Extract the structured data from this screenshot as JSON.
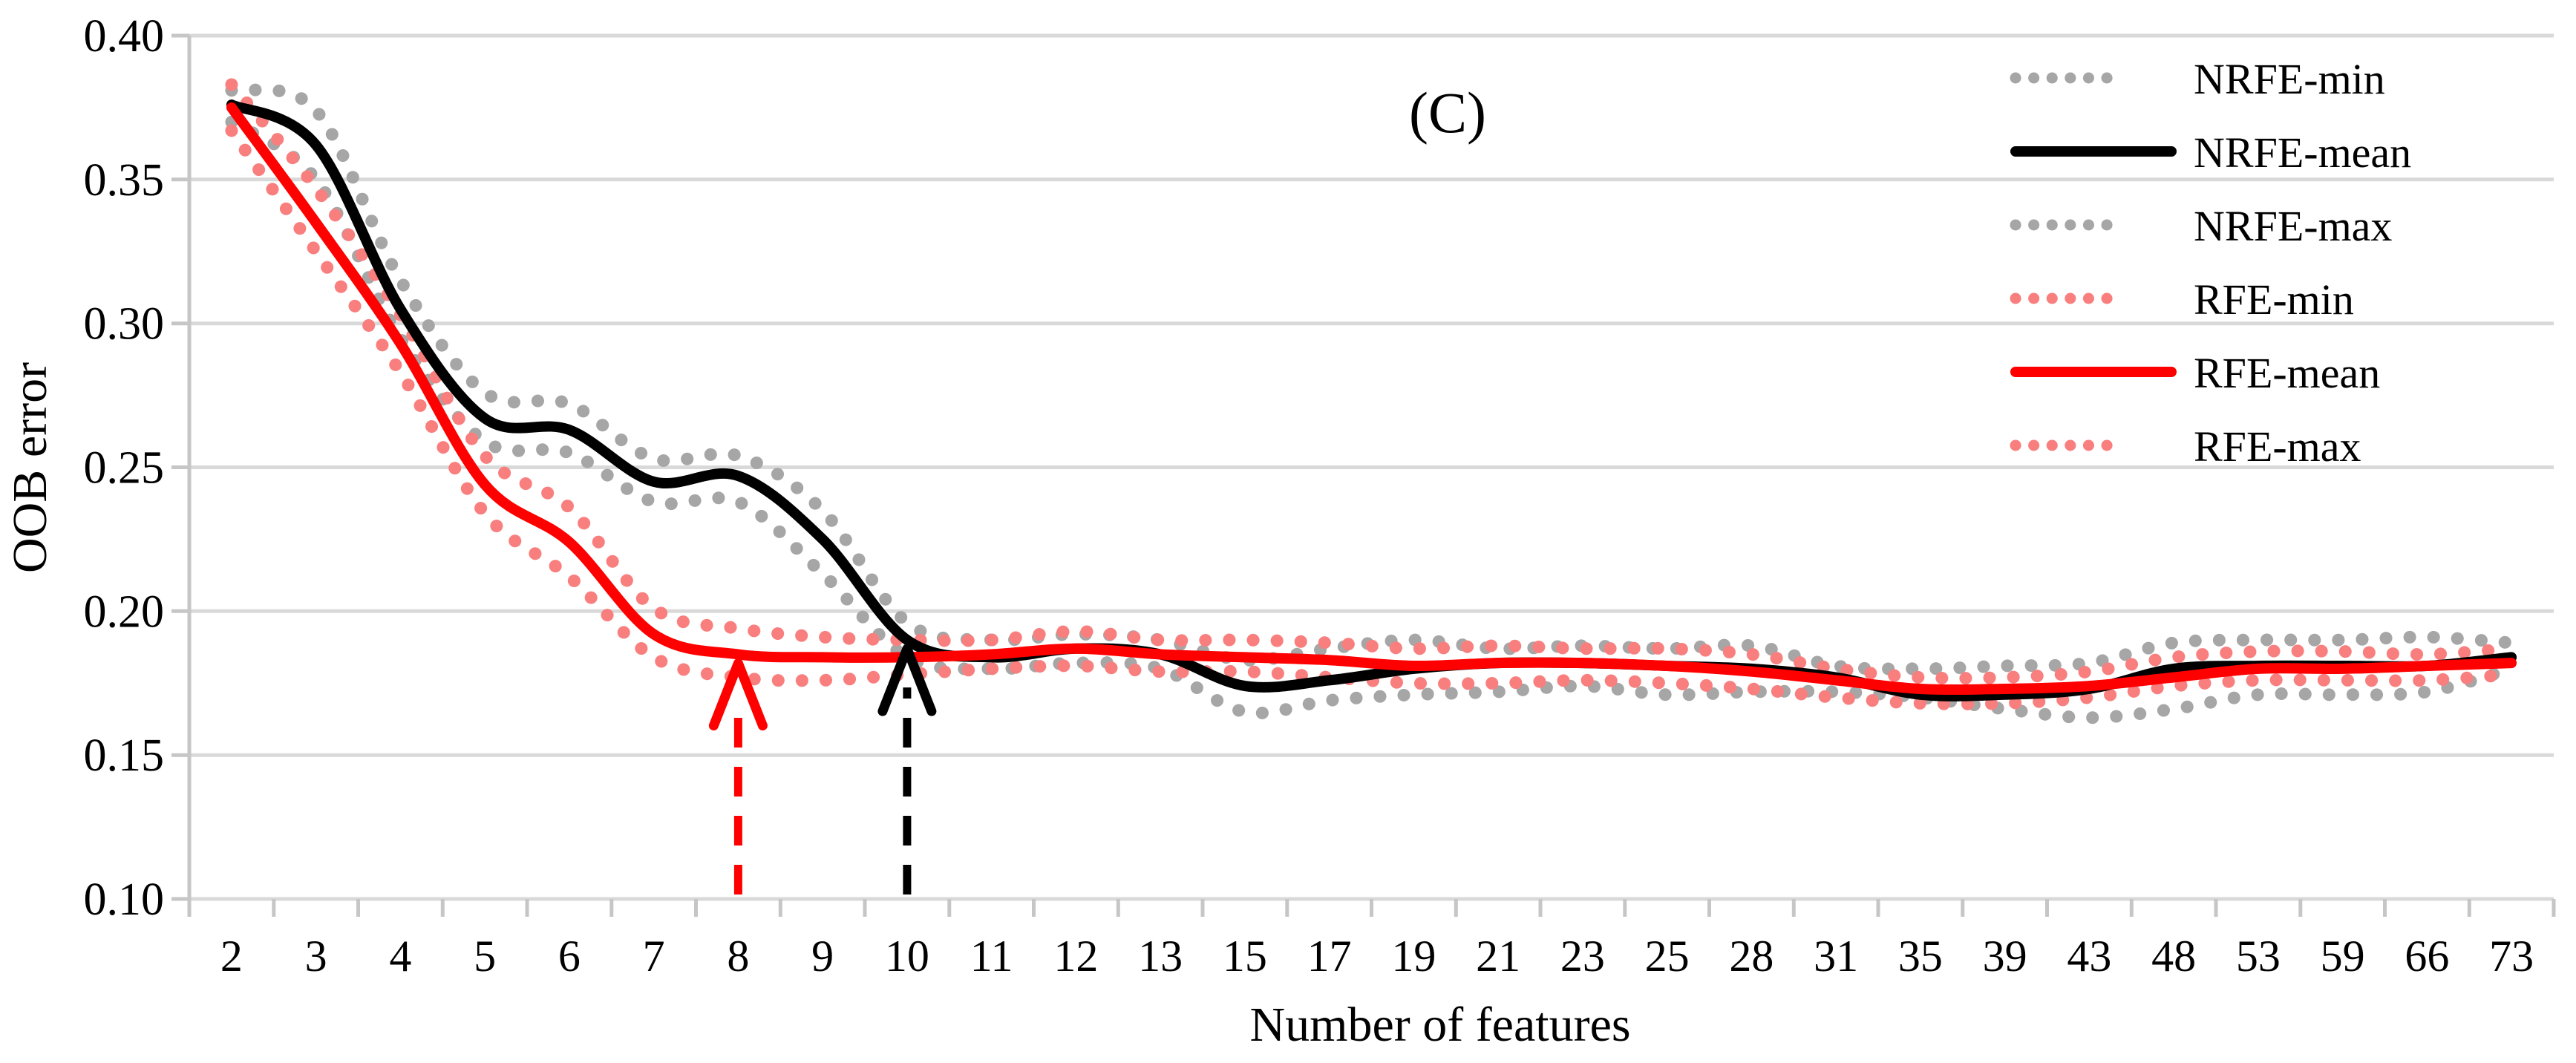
{
  "chart_data": {
    "type": "line",
    "title": "(C)",
    "xlabel": "Number of features",
    "ylabel": "OOB error",
    "ylim": [
      0.1,
      0.4
    ],
    "ytick_step": 0.05,
    "y_tick_labels": [
      "0.40",
      "0.35",
      "0.30",
      "0.25",
      "0.20",
      "0.15",
      "0.10"
    ],
    "grid": "horizontal",
    "grid_color": "#D9D9D9",
    "axis_color": "#C6C6C6",
    "legend_position": "top-right",
    "categories": [
      "2",
      "3",
      "4",
      "5",
      "6",
      "7",
      "8",
      "9",
      "10",
      "11",
      "12",
      "13",
      "15",
      "17",
      "19",
      "21",
      "23",
      "25",
      "28",
      "31",
      "35",
      "39",
      "43",
      "48",
      "53",
      "59",
      "66",
      "73"
    ],
    "series": [
      {
        "name": "NRFE-min",
        "style": "dotted",
        "color": "#A6A6A6",
        "values": [
          0.37,
          0.35,
          0.295,
          0.259,
          0.255,
          0.238,
          0.238,
          0.213,
          0.184,
          0.18,
          0.182,
          0.18,
          0.165,
          0.169,
          0.171,
          0.172,
          0.174,
          0.171,
          0.172,
          0.172,
          0.17,
          0.166,
          0.163,
          0.166,
          0.171,
          0.171,
          0.172,
          0.18
        ]
      },
      {
        "name": "NRFE-mean",
        "style": "solid",
        "color": "#000000",
        "values": [
          0.376,
          0.362,
          0.305,
          0.267,
          0.263,
          0.245,
          0.247,
          0.225,
          0.19,
          0.184,
          0.187,
          0.185,
          0.174,
          0.176,
          0.18,
          0.182,
          0.182,
          0.181,
          0.18,
          0.177,
          0.171,
          0.171,
          0.173,
          0.18,
          0.181,
          0.181,
          0.181,
          0.184
        ]
      },
      {
        "name": "NRFE-max",
        "style": "dotted",
        "color": "#A6A6A6",
        "values": [
          0.381,
          0.374,
          0.315,
          0.276,
          0.272,
          0.253,
          0.254,
          0.235,
          0.196,
          0.19,
          0.192,
          0.19,
          0.183,
          0.187,
          0.19,
          0.187,
          0.188,
          0.187,
          0.188,
          0.181,
          0.18,
          0.181,
          0.182,
          0.189,
          0.19,
          0.19,
          0.191,
          0.189
        ]
      },
      {
        "name": "RFE-min",
        "style": "dotted",
        "color": "#F97F7F",
        "values": [
          0.367,
          0.325,
          0.283,
          0.234,
          0.212,
          0.184,
          0.177,
          0.176,
          0.178,
          0.18,
          0.181,
          0.179,
          0.179,
          0.177,
          0.175,
          0.175,
          0.176,
          0.175,
          0.173,
          0.17,
          0.168,
          0.168,
          0.17,
          0.174,
          0.176,
          0.176,
          0.176,
          0.178
        ]
      },
      {
        "name": "RFE-mean",
        "style": "solid",
        "color": "#FF0000",
        "values": [
          0.375,
          0.335,
          0.293,
          0.244,
          0.224,
          0.192,
          0.185,
          0.184,
          0.184,
          0.185,
          0.187,
          0.185,
          0.184,
          0.183,
          0.181,
          0.182,
          0.182,
          0.181,
          0.179,
          0.176,
          0.173,
          0.173,
          0.174,
          0.177,
          0.18,
          0.18,
          0.181,
          0.182
        ]
      },
      {
        "name": "RFE-max",
        "style": "dotted",
        "color": "#F97F7F",
        "values": [
          0.383,
          0.347,
          0.303,
          0.254,
          0.236,
          0.201,
          0.194,
          0.191,
          0.19,
          0.19,
          0.193,
          0.19,
          0.19,
          0.189,
          0.187,
          0.188,
          0.187,
          0.187,
          0.185,
          0.18,
          0.177,
          0.177,
          0.179,
          0.184,
          0.186,
          0.186,
          0.185,
          0.187
        ]
      }
    ],
    "annotations": {
      "arrows": [
        {
          "category": "8",
          "series": "RFE-mean",
          "color": "#FF0000",
          "style": "dashed-vertical-up"
        },
        {
          "category": "10",
          "series": "NRFE-mean",
          "color": "#000000",
          "style": "dashed-vertical-up"
        }
      ]
    }
  }
}
